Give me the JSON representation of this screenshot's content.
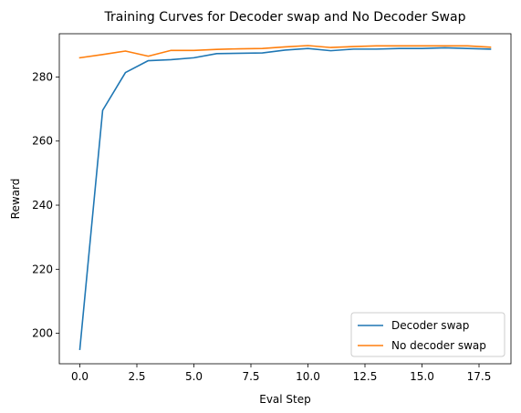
{
  "chart_data": {
    "type": "line",
    "title": "Training Curves for Decoder swap and No Decoder Swap",
    "xlabel": "Eval Step",
    "ylabel": "Reward",
    "xlim": [
      -0.9,
      18.9
    ],
    "ylim": [
      190.5,
      293.5
    ],
    "xticks": [
      0.0,
      2.5,
      5.0,
      7.5,
      10.0,
      12.5,
      15.0,
      17.5
    ],
    "xtick_labels": [
      "0.0",
      "2.5",
      "5.0",
      "7.5",
      "10.0",
      "12.5",
      "15.0",
      "17.5"
    ],
    "yticks": [
      200,
      220,
      240,
      260,
      280
    ],
    "ytick_labels": [
      "200",
      "220",
      "240",
      "260",
      "280"
    ],
    "grid": false,
    "legend_position": "lower-right",
    "x": [
      0,
      1,
      2,
      3,
      4,
      5,
      6,
      7,
      8,
      9,
      10,
      11,
      12,
      13,
      14,
      15,
      16,
      17,
      18
    ],
    "series": [
      {
        "name": "Decoder swap",
        "color": "#1f77b4",
        "values": [
          195.0,
          269.6,
          281.4,
          285.1,
          285.4,
          286.0,
          287.3,
          287.4,
          287.5,
          288.4,
          288.9,
          288.2,
          288.7,
          288.7,
          288.9,
          288.9,
          289.1,
          288.9,
          288.7
        ]
      },
      {
        "name": "No decoder swap",
        "color": "#ff7f0e",
        "values": [
          286.0,
          287.0,
          288.1,
          286.5,
          288.3,
          288.3,
          288.6,
          288.8,
          288.9,
          289.4,
          289.8,
          289.2,
          289.5,
          289.7,
          289.7,
          289.7,
          289.7,
          289.7,
          289.3
        ]
      }
    ]
  }
}
